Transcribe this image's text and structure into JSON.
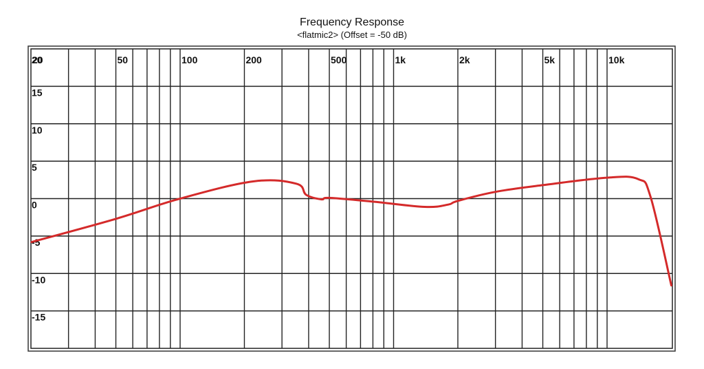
{
  "chart_data": {
    "type": "line",
    "title": "Frequency Response",
    "subtitle": "<flatmic2> (Offset = -50 dB)",
    "xlabel": "",
    "ylabel": "",
    "xscale": "log",
    "xlim": [
      20,
      20000
    ],
    "ylim": [
      -20,
      20
    ],
    "grid": true,
    "legend": null,
    "x_tick_labels": [
      {
        "value": 20,
        "label": "20"
      },
      {
        "value": 50,
        "label": "50"
      },
      {
        "value": 100,
        "label": "100"
      },
      {
        "value": 200,
        "label": "200"
      },
      {
        "value": 500,
        "label": "500"
      },
      {
        "value": 1000,
        "label": "1k"
      },
      {
        "value": 2000,
        "label": "2k"
      },
      {
        "value": 5000,
        "label": "5k"
      },
      {
        "value": 10000,
        "label": "10k"
      }
    ],
    "x_gridlines": [
      30,
      40,
      50,
      60,
      70,
      80,
      90,
      100,
      200,
      300,
      400,
      500,
      600,
      700,
      800,
      900,
      1000,
      2000,
      3000,
      4000,
      5000,
      6000,
      7000,
      8000,
      9000,
      10000
    ],
    "y_tick_labels": [
      {
        "value": 20,
        "label": "20"
      },
      {
        "value": 15,
        "label": "15"
      },
      {
        "value": 10,
        "label": "10"
      },
      {
        "value": 5,
        "label": "5"
      },
      {
        "value": 0,
        "label": "0"
      },
      {
        "value": -5,
        "label": "-5"
      },
      {
        "value": -10,
        "label": "-10"
      },
      {
        "value": -15,
        "label": "-15"
      }
    ],
    "series": [
      {
        "name": "flatmic2",
        "color": "#d42a2a",
        "x": [
          20,
          50,
          100,
          220,
          350,
          390,
          460,
          500,
          800,
          1400,
          1800,
          2000,
          3000,
          5000,
          10000,
          14000,
          16000,
          20000
        ],
        "y": [
          -5.8,
          -2.7,
          0.0,
          2.3,
          2.0,
          0.5,
          -0.1,
          0.1,
          -0.4,
          -1.1,
          -0.8,
          -0.3,
          0.9,
          1.8,
          2.8,
          2.6,
          0.2,
          -11.6
        ]
      }
    ]
  }
}
